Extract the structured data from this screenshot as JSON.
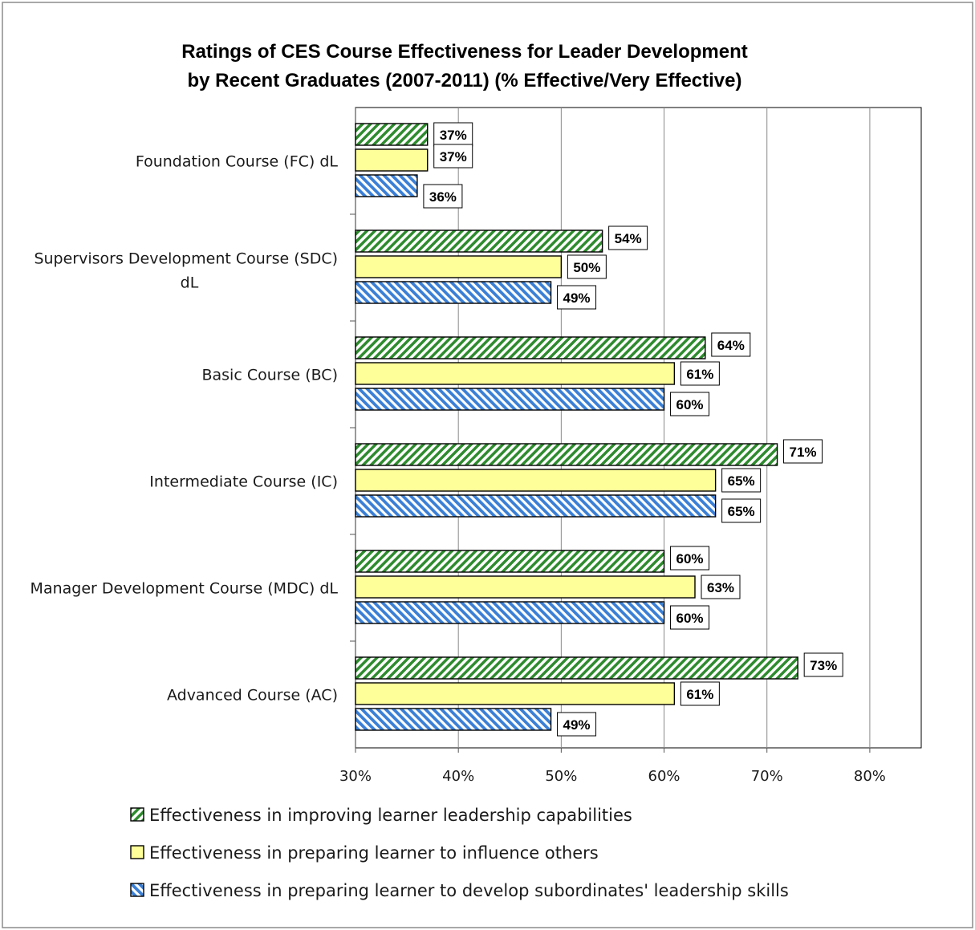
{
  "chart_data": {
    "type": "bar",
    "orientation": "horizontal",
    "title": [
      "Ratings of CES Course Effectiveness for Leader Development",
      "by Recent Graduates (2007-2011) (% Effective/Very Effective)"
    ],
    "categories": [
      [
        "Foundation Course (FC) dL"
      ],
      [
        "Supervisors Development Course (SDC)",
        "dL"
      ],
      [
        "Basic Course (BC)"
      ],
      [
        "Intermediate Course (IC)"
      ],
      [
        "Manager Development Course (MDC) dL"
      ],
      [
        "Advanced Course (AC)"
      ]
    ],
    "series": [
      {
        "name": "Effectiveness in improving learner leadership capabilities",
        "values": [
          37,
          54,
          64,
          71,
          60,
          73
        ],
        "labels": [
          "37%",
          "54%",
          "64%",
          "71%",
          "60%",
          "73%"
        ],
        "color": "#2e8b2e",
        "fill": "green-hatch"
      },
      {
        "name": "Effectiveness in preparing learner to influence others",
        "values": [
          37,
          50,
          61,
          65,
          63,
          61
        ],
        "labels": [
          "37%",
          "50%",
          "61%",
          "65%",
          "63%",
          "61%"
        ],
        "color": "#ffff99",
        "fill": "solid-yellow"
      },
      {
        "name": "Effectiveness in preparing learner to develop subordinates' leadership skills",
        "values": [
          36,
          49,
          60,
          65,
          60,
          49
        ],
        "labels": [
          "36%",
          "49%",
          "60%",
          "65%",
          "60%",
          "49%"
        ],
        "color": "#3a7fd5",
        "fill": "blue-hatch"
      }
    ],
    "xlim": [
      30,
      85
    ],
    "xticks": [
      30,
      40,
      50,
      60,
      70,
      80
    ],
    "xtick_labels": [
      "30%",
      "40%",
      "50%",
      "60%",
      "70%",
      "80%"
    ],
    "grid": "vertical",
    "legend": "bottom",
    "xlabel": "",
    "ylabel": ""
  }
}
